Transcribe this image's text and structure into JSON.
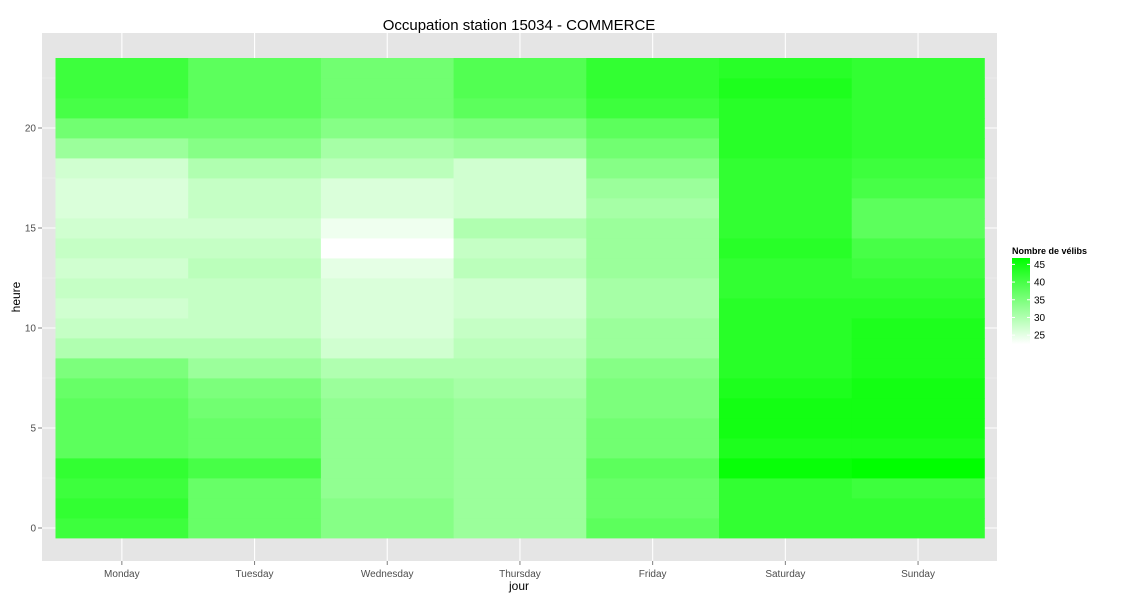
{
  "chart_data": {
    "type": "heatmap",
    "title": "Occupation station 15034 - COMMERCE",
    "xlabel": "jour",
    "ylabel": "heure",
    "x_categories": [
      "Monday",
      "Tuesday",
      "Wednesday",
      "Thursday",
      "Friday",
      "Saturday",
      "Sunday"
    ],
    "y_range": [
      -0.5,
      23.5
    ],
    "y_ticks": [
      0,
      5,
      10,
      15,
      20
    ],
    "grid": true,
    "legend": {
      "title": "Nombre de vélibs",
      "placement": "right",
      "ticks": [
        25,
        30,
        35,
        40,
        45
      ],
      "min": 22.5,
      "max": 46.8,
      "color_low": "#ffffff",
      "color_high": "#00ff00"
    },
    "values": {
      "Monday": [
        41,
        42,
        41,
        42,
        38,
        38,
        38,
        37,
        35,
        30,
        28,
        27,
        28,
        27,
        28,
        27,
        26,
        26,
        27,
        32,
        36,
        40,
        41,
        41
      ],
      "Tuesday": [
        37,
        37,
        37,
        40,
        37,
        37,
        36,
        35,
        32,
        30,
        28,
        28,
        28,
        29,
        28,
        27,
        28,
        28,
        30,
        34,
        36,
        38,
        38,
        38
      ],
      "Wednesday": [
        34,
        34,
        33,
        33,
        33,
        33,
        33,
        32,
        30,
        27,
        26,
        26,
        26,
        25,
        22.5,
        24,
        26,
        26,
        29,
        31,
        34,
        36,
        36,
        36
      ],
      "Thursday": [
        32,
        32,
        32,
        32,
        32,
        32,
        32,
        31,
        30,
        29,
        28,
        27,
        27,
        29,
        28,
        30,
        27,
        27,
        27,
        32,
        35,
        38,
        39,
        39
      ],
      "Friday": [
        38,
        37,
        37,
        38,
        36,
        36,
        35,
        35,
        34,
        32,
        32,
        31,
        31,
        32,
        32,
        32,
        31,
        32,
        34,
        36,
        38,
        41,
        42,
        42
      ],
      "Saturday": [
        42,
        42,
        42,
        46,
        44,
        45,
        45,
        44,
        43,
        43,
        43,
        43,
        42,
        42,
        43,
        42,
        42,
        42,
        42,
        43,
        43,
        43,
        44,
        43
      ],
      "Sunday": [
        42,
        42,
        41,
        46.8,
        44,
        45,
        45,
        45,
        44,
        44,
        44,
        43,
        42,
        41,
        40,
        38,
        38,
        40,
        41,
        42,
        42,
        42,
        42,
        42
      ]
    }
  }
}
